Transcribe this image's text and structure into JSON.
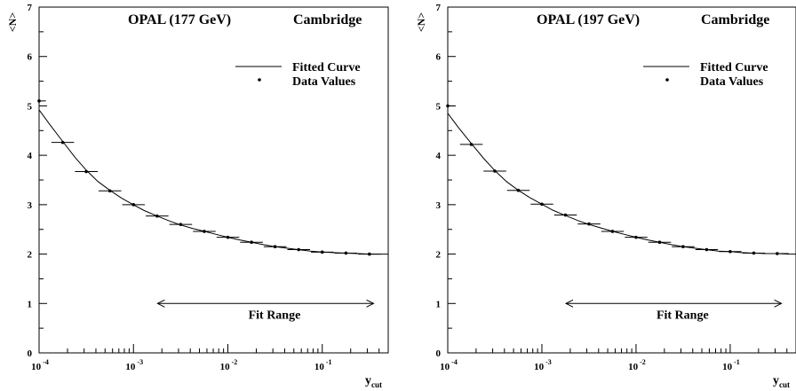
{
  "chart_data": [
    {
      "type": "scatter",
      "title": "OPAL (177 GeV)",
      "label": "Cambridge",
      "ylabel_lines": [
        "<N>"
      ],
      "xlabel": "y",
      "xlabel_sub": "cut",
      "x_scale": "log",
      "xlim": [
        0.0001,
        0.5
      ],
      "ylim": [
        0,
        7
      ],
      "x_ticks": [
        {
          "value": 0.0001,
          "base": "10",
          "exp": "-4"
        },
        {
          "value": 0.001,
          "base": "10",
          "exp": "-3"
        },
        {
          "value": 0.01,
          "base": "10",
          "exp": "-2"
        },
        {
          "value": 0.1,
          "base": "10",
          "exp": "-1"
        }
      ],
      "y_ticks": [
        0,
        1,
        2,
        3,
        4,
        5,
        6,
        7
      ],
      "legend": {
        "entries": [
          "Fitted Curve",
          "Data Values"
        ],
        "position": "top-right"
      },
      "fit_range": {
        "label": "Fit Range",
        "x": [
          0.0018,
          0.35
        ],
        "y": 1.0
      },
      "series": [
        {
          "name": "Data Values",
          "style": "points-with-x-error",
          "points": [
            {
              "x": 0.0001,
              "y": 5.1,
              "xerr": [
                8.5e-05,
                0.000118
              ]
            },
            {
              "x": 0.000178,
              "y": 4.26,
              "xerr": [
                0.000135,
                0.000235
              ]
            },
            {
              "x": 0.000316,
              "y": 3.67,
              "xerr": [
                0.00024,
                0.000418
              ]
            },
            {
              "x": 0.000562,
              "y": 3.28,
              "xerr": [
                0.000427,
                0.000742
              ]
            },
            {
              "x": 0.001,
              "y": 3.0,
              "xerr": [
                0.00076,
                0.00132
              ]
            },
            {
              "x": 0.00178,
              "y": 2.77,
              "xerr": [
                0.00135,
                0.00235
              ]
            },
            {
              "x": 0.00316,
              "y": 2.6,
              "xerr": [
                0.0024,
                0.00418
              ]
            },
            {
              "x": 0.00562,
              "y": 2.46,
              "xerr": [
                0.00427,
                0.00742
              ]
            },
            {
              "x": 0.01,
              "y": 2.34,
              "xerr": [
                0.0076,
                0.0132
              ]
            },
            {
              "x": 0.0178,
              "y": 2.24,
              "xerr": [
                0.0135,
                0.0235
              ]
            },
            {
              "x": 0.0316,
              "y": 2.15,
              "xerr": [
                0.024,
                0.0418
              ]
            },
            {
              "x": 0.0562,
              "y": 2.09,
              "xerr": [
                0.0427,
                0.0742
              ]
            },
            {
              "x": 0.1,
              "y": 2.04,
              "xerr": [
                0.076,
                0.132
              ]
            },
            {
              "x": 0.178,
              "y": 2.02,
              "xerr": [
                0.135,
                0.235
              ]
            },
            {
              "x": 0.316,
              "y": 2.0,
              "xerr": [
                0.24,
                0.418
              ]
            }
          ]
        },
        {
          "name": "Fitted Curve",
          "style": "line",
          "x": [
            0.0001,
            0.00013,
            0.000178,
            0.00024,
            0.000316,
            0.00042,
            0.000562,
            0.00075,
            0.001,
            0.0013,
            0.00178,
            0.0024,
            0.00316,
            0.0042,
            0.00562,
            0.0075,
            0.01,
            0.013,
            0.0178,
            0.024,
            0.0316,
            0.042,
            0.0562,
            0.075,
            0.1,
            0.13,
            0.178,
            0.24,
            0.316,
            0.42,
            0.5
          ],
          "y": [
            4.92,
            4.62,
            4.28,
            3.96,
            3.7,
            3.47,
            3.29,
            3.13,
            3.0,
            2.88,
            2.77,
            2.67,
            2.59,
            2.52,
            2.46,
            2.4,
            2.34,
            2.29,
            2.24,
            2.19,
            2.15,
            2.12,
            2.09,
            2.06,
            2.04,
            2.03,
            2.02,
            2.01,
            2.0,
            2.0,
            2.0
          ]
        }
      ]
    },
    {
      "type": "scatter",
      "title": "OPAL (197 GeV)",
      "label": "Cambridge",
      "ylabel_lines": [
        "<N>"
      ],
      "xlabel": "y",
      "xlabel_sub": "cut",
      "x_scale": "log",
      "xlim": [
        0.0001,
        0.5
      ],
      "ylim": [
        0,
        7
      ],
      "x_ticks": [
        {
          "value": 0.0001,
          "base": "10",
          "exp": "-4"
        },
        {
          "value": 0.001,
          "base": "10",
          "exp": "-3"
        },
        {
          "value": 0.01,
          "base": "10",
          "exp": "-2"
        },
        {
          "value": 0.1,
          "base": "10",
          "exp": "-1"
        }
      ],
      "y_ticks": [
        0,
        1,
        2,
        3,
        4,
        5,
        6,
        7
      ],
      "legend": {
        "entries": [
          "Fitted Curve",
          "Data Values"
        ],
        "position": "top-right"
      },
      "fit_range": {
        "label": "Fit Range",
        "x": [
          0.0018,
          0.35
        ],
        "y": 1.0
      },
      "series": [
        {
          "name": "Data Values",
          "style": "points-with-x-error",
          "points": [
            {
              "x": 0.0001,
              "y": 5.0,
              "xerr": [
                8.5e-05,
                0.000118
              ]
            },
            {
              "x": 0.000178,
              "y": 4.22,
              "xerr": [
                0.000135,
                0.000235
              ]
            },
            {
              "x": 0.000316,
              "y": 3.68,
              "xerr": [
                0.00024,
                0.000418
              ]
            },
            {
              "x": 0.000562,
              "y": 3.29,
              "xerr": [
                0.000427,
                0.000742
              ]
            },
            {
              "x": 0.001,
              "y": 3.01,
              "xerr": [
                0.00076,
                0.00132
              ]
            },
            {
              "x": 0.00178,
              "y": 2.79,
              "xerr": [
                0.00135,
                0.00235
              ]
            },
            {
              "x": 0.00316,
              "y": 2.61,
              "xerr": [
                0.0024,
                0.00418
              ]
            },
            {
              "x": 0.00562,
              "y": 2.46,
              "xerr": [
                0.00427,
                0.00742
              ]
            },
            {
              "x": 0.01,
              "y": 2.34,
              "xerr": [
                0.0076,
                0.0132
              ]
            },
            {
              "x": 0.0178,
              "y": 2.24,
              "xerr": [
                0.0135,
                0.0235
              ]
            },
            {
              "x": 0.0316,
              "y": 2.15,
              "xerr": [
                0.024,
                0.0418
              ]
            },
            {
              "x": 0.0562,
              "y": 2.09,
              "xerr": [
                0.0427,
                0.0742
              ]
            },
            {
              "x": 0.1,
              "y": 2.05,
              "xerr": [
                0.076,
                0.132
              ]
            },
            {
              "x": 0.178,
              "y": 2.02,
              "xerr": [
                0.135,
                0.235
              ]
            },
            {
              "x": 0.316,
              "y": 2.01,
              "xerr": [
                0.24,
                0.418
              ]
            }
          ]
        },
        {
          "name": "Fitted Curve",
          "style": "line",
          "x": [
            0.0001,
            0.00013,
            0.000178,
            0.00024,
            0.000316,
            0.00042,
            0.000562,
            0.00075,
            0.001,
            0.0013,
            0.00178,
            0.0024,
            0.00316,
            0.0042,
            0.00562,
            0.0075,
            0.01,
            0.013,
            0.0178,
            0.024,
            0.0316,
            0.042,
            0.0562,
            0.075,
            0.1,
            0.13,
            0.178,
            0.24,
            0.316,
            0.42,
            0.5
          ],
          "y": [
            4.85,
            4.56,
            4.24,
            3.94,
            3.69,
            3.47,
            3.29,
            3.14,
            3.01,
            2.89,
            2.78,
            2.68,
            2.6,
            2.53,
            2.46,
            2.4,
            2.34,
            2.29,
            2.24,
            2.19,
            2.15,
            2.12,
            2.09,
            2.06,
            2.05,
            2.03,
            2.02,
            2.01,
            2.01,
            2.0,
            2.0
          ]
        }
      ]
    }
  ]
}
